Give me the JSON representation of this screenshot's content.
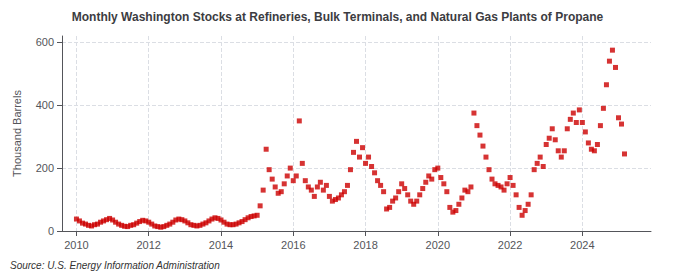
{
  "chart_data": {
    "type": "scatter",
    "title": "Monthly Washington Stocks at Refineries, Bulk Terminals, and Natural Gas Plants of Propane",
    "ylabel": "Thousand Barrels",
    "annotation": "Source: U.S. Energy Information Administration",
    "color": "#cc0000",
    "marker": "square",
    "grid": true,
    "xlim": [
      2009.6,
      2025.9
    ],
    "xticks": [
      2010,
      2012,
      2014,
      2016,
      2018,
      2020,
      2022,
      2024
    ],
    "ylim": [
      0,
      620
    ],
    "yticks": [
      0,
      200,
      400,
      600
    ],
    "x": [
      2010.0,
      2010.083,
      2010.167,
      2010.25,
      2010.333,
      2010.417,
      2010.5,
      2010.583,
      2010.667,
      2010.75,
      2010.833,
      2010.917,
      2011.0,
      2011.083,
      2011.167,
      2011.25,
      2011.333,
      2011.417,
      2011.5,
      2011.583,
      2011.667,
      2011.75,
      2011.833,
      2011.917,
      2012.0,
      2012.083,
      2012.167,
      2012.25,
      2012.333,
      2012.417,
      2012.5,
      2012.583,
      2012.667,
      2012.75,
      2012.833,
      2012.917,
      2013.0,
      2013.083,
      2013.167,
      2013.25,
      2013.333,
      2013.417,
      2013.5,
      2013.583,
      2013.667,
      2013.75,
      2013.833,
      2013.917,
      2014.0,
      2014.083,
      2014.167,
      2014.25,
      2014.333,
      2014.417,
      2014.5,
      2014.583,
      2014.667,
      2014.75,
      2014.833,
      2014.917,
      2015.0,
      2015.083,
      2015.167,
      2015.25,
      2015.333,
      2015.417,
      2015.5,
      2015.583,
      2015.667,
      2015.75,
      2015.833,
      2015.917,
      2016.0,
      2016.083,
      2016.167,
      2016.25,
      2016.333,
      2016.417,
      2016.5,
      2016.583,
      2016.667,
      2016.75,
      2016.833,
      2016.917,
      2017.0,
      2017.083,
      2017.167,
      2017.25,
      2017.333,
      2017.417,
      2017.5,
      2017.583,
      2017.667,
      2017.75,
      2017.833,
      2017.917,
      2018.0,
      2018.083,
      2018.167,
      2018.25,
      2018.333,
      2018.417,
      2018.5,
      2018.583,
      2018.667,
      2018.75,
      2018.833,
      2018.917,
      2019.0,
      2019.083,
      2019.167,
      2019.25,
      2019.333,
      2019.417,
      2019.5,
      2019.583,
      2019.667,
      2019.75,
      2019.833,
      2019.917,
      2020.0,
      2020.083,
      2020.167,
      2020.25,
      2020.333,
      2020.417,
      2020.5,
      2020.583,
      2020.667,
      2020.75,
      2020.833,
      2020.917,
      2021.0,
      2021.083,
      2021.167,
      2021.25,
      2021.333,
      2021.417,
      2021.5,
      2021.583,
      2021.667,
      2021.75,
      2021.833,
      2021.917,
      2022.0,
      2022.083,
      2022.167,
      2022.25,
      2022.333,
      2022.417,
      2022.5,
      2022.583,
      2022.667,
      2022.75,
      2022.833,
      2022.917,
      2023.0,
      2023.083,
      2023.167,
      2023.25,
      2023.333,
      2023.417,
      2023.5,
      2023.583,
      2023.667,
      2023.75,
      2023.833,
      2023.917,
      2024.0,
      2024.083,
      2024.167,
      2024.25,
      2024.333,
      2024.417,
      2024.5,
      2024.583,
      2024.667,
      2024.75,
      2024.833,
      2024.917,
      2025.0,
      2025.083,
      2025.167
    ],
    "values": [
      38,
      32,
      25,
      22,
      18,
      16,
      20,
      22,
      28,
      32,
      36,
      40,
      35,
      28,
      22,
      18,
      15,
      14,
      18,
      20,
      25,
      30,
      34,
      32,
      28,
      22,
      16,
      14,
      12,
      14,
      18,
      22,
      28,
      35,
      38,
      36,
      32,
      26,
      20,
      18,
      16,
      18,
      22,
      26,
      32,
      38,
      42,
      40,
      35,
      28,
      22,
      20,
      20,
      22,
      26,
      30,
      36,
      42,
      46,
      48,
      50,
      80,
      130,
      260,
      195,
      165,
      140,
      120,
      125,
      150,
      175,
      200,
      160,
      175,
      350,
      215,
      160,
      140,
      130,
      110,
      140,
      155,
      130,
      145,
      110,
      95,
      100,
      105,
      115,
      125,
      145,
      195,
      250,
      285,
      235,
      265,
      215,
      235,
      205,
      185,
      160,
      145,
      125,
      70,
      75,
      95,
      105,
      125,
      150,
      135,
      115,
      95,
      85,
      95,
      115,
      135,
      155,
      175,
      165,
      195,
      200,
      170,
      150,
      125,
      75,
      60,
      65,
      85,
      105,
      130,
      125,
      140,
      375,
      335,
      305,
      270,
      235,
      195,
      165,
      150,
      145,
      140,
      130,
      150,
      170,
      145,
      115,
      75,
      50,
      65,
      85,
      115,
      195,
      215,
      235,
      205,
      275,
      295,
      325,
      290,
      255,
      235,
      255,
      325,
      355,
      375,
      345,
      385,
      345,
      315,
      280,
      260,
      255,
      275,
      335,
      390,
      465,
      540,
      575,
      520,
      360,
      340,
      245
    ]
  }
}
